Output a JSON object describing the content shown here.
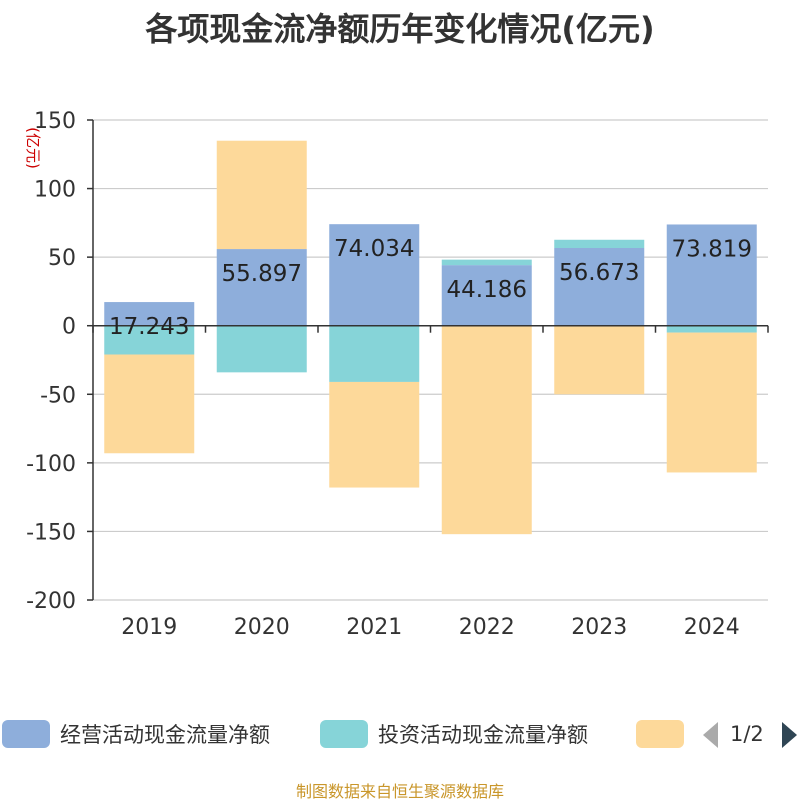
{
  "chart_data": {
    "type": "bar",
    "stacked": true,
    "title": "各项现金流净额历年变化情况(亿元)",
    "ylabel": "(亿元)",
    "xlabel": "",
    "categories": [
      "2019",
      "2020",
      "2021",
      "2022",
      "2023",
      "2024"
    ],
    "ylim": [
      -200,
      150
    ],
    "yticks": [
      150,
      100,
      50,
      0,
      -50,
      -100,
      -150,
      -200
    ],
    "grid": true,
    "series": [
      {
        "name": "经营活动现金流量净额",
        "color": "#8eaedb",
        "values": [
          17.243,
          55.897,
          74.034,
          44.186,
          56.673,
          73.819
        ]
      },
      {
        "name": "投资活动现金流量净额",
        "color": "#86d4d8",
        "values": [
          -21,
          -34,
          -41,
          4,
          6,
          -5
        ]
      },
      {
        "name": "",
        "color": "#fdd99a",
        "values": [
          -72,
          79,
          -77,
          -152,
          -50,
          -102
        ]
      }
    ],
    "data_labels": [
      "17.243",
      "55.897",
      "74.034",
      "44.186",
      "56.673",
      "73.819"
    ],
    "legend": {
      "position": "bottom",
      "items": [
        {
          "label": "经营活动现金流量净额",
          "color": "#8eaedb"
        },
        {
          "label": "投资活动现金流量净额",
          "color": "#86d4d8"
        },
        {
          "label": "",
          "color": "#fdd99a"
        }
      ],
      "page": "1/2"
    }
  },
  "footer": "制图数据来自恒生聚源数据库"
}
